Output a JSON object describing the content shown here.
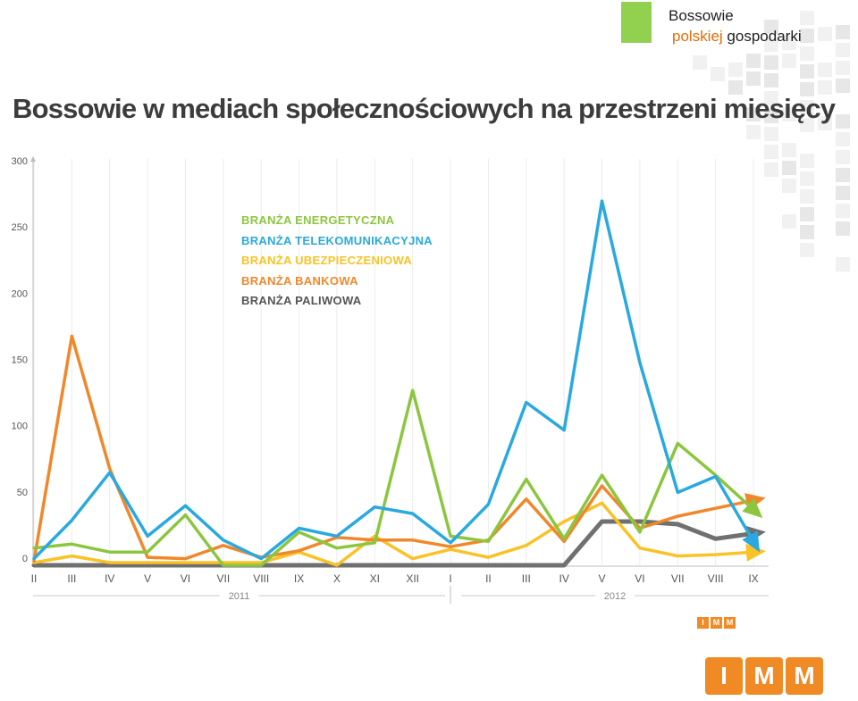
{
  "header": {
    "brand_line1": "Bossowie",
    "brand_line2_accent": "polskiej",
    "brand_line2_rest": " gospodarki",
    "brand_color": "#92d050",
    "accent_color": "#e46c0a"
  },
  "title": "Bossowie w mediach społecznościowych na przestrzeni miesięcy",
  "legend": [
    {
      "label": "BRANŻA ENERGETYCZNA",
      "color": "#8cc63f"
    },
    {
      "label": "BRANŻA TELEKOMUNIKACYJNA",
      "color": "#29a9e0"
    },
    {
      "label": "BRANŻA UBEZPIECZENIOWA",
      "color": "#f9c225"
    },
    {
      "label": "BRANŻA BANKOWA",
      "color": "#f0882b"
    },
    {
      "label": "BRANŻA PALIWOWA",
      "color": "#555555"
    }
  ],
  "chart_data": {
    "type": "line",
    "title": "Bossowie w mediach społecznościowych na przestrzeni miesięcy",
    "xlabel": "",
    "ylabel": "",
    "categories": [
      "II",
      "III",
      "IV",
      "V",
      "VI",
      "VII",
      "VIII",
      "IX",
      "X",
      "XI",
      "XII",
      "I",
      "II",
      "III",
      "IV",
      "V",
      "VI",
      "VII",
      "VIII",
      "IX"
    ],
    "year_groups": [
      {
        "label": "2011",
        "from": 0,
        "to": 11
      },
      {
        "label": "2012",
        "from": 11,
        "to": 19
      }
    ],
    "ylim": [
      0,
      300
    ],
    "yticks": [
      0,
      50,
      100,
      150,
      200,
      250,
      300
    ],
    "grid": "vertical",
    "legend_position": "top-center",
    "series": [
      {
        "name": "BRANŻA ENERGETYCZNA",
        "color": "#8cc63f",
        "values": [
          13,
          16,
          10,
          10,
          38,
          0,
          0,
          25,
          13,
          17,
          132,
          22,
          18,
          65,
          20,
          68,
          25,
          92,
          68,
          42
        ]
      },
      {
        "name": "BRANŻA TELEKOMUNIKACYJNA",
        "color": "#29a9e0",
        "values": [
          5,
          34,
          70,
          22,
          45,
          19,
          5,
          28,
          22,
          44,
          39,
          17,
          46,
          123,
          102,
          275,
          153,
          55,
          67,
          18
        ]
      },
      {
        "name": "BRANŻA UBEZPIECZENIOWA",
        "color": "#f9c225",
        "values": [
          2,
          7,
          2,
          2,
          2,
          2,
          2,
          10,
          0,
          22,
          5,
          12,
          6,
          15,
          33,
          47,
          13,
          7,
          8,
          10
        ]
      },
      {
        "name": "BRANŻA BANKOWA",
        "color": "#f0882b",
        "values": [
          3,
          173,
          73,
          6,
          5,
          15,
          6,
          11,
          21,
          19,
          19,
          14,
          19,
          50,
          18,
          60,
          28,
          37,
          43,
          49
        ]
      },
      {
        "name": "BRANŻA PALIWOWA",
        "color": "#707070",
        "values": [
          0,
          0,
          0,
          0,
          0,
          0,
          0,
          0,
          0,
          0,
          0,
          0,
          0,
          0,
          0,
          33,
          33,
          31,
          20,
          24
        ]
      }
    ]
  },
  "logo": {
    "letters": [
      "I",
      "M",
      "M"
    ],
    "color": "#f08a24"
  }
}
